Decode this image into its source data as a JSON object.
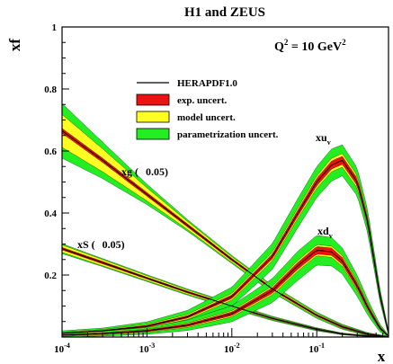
{
  "chart_data": {
    "type": "line",
    "title": "H1 and ZEUS",
    "xlabel": "x",
    "ylabel": "xf",
    "xscale": "log",
    "xlim": [
      0.0001,
      0.7
    ],
    "ylim": [
      0,
      1
    ],
    "grid": false,
    "legend_position": "top-center",
    "x_ticks": [
      {
        "value": 0.0001,
        "base": "10",
        "exp": "-4"
      },
      {
        "value": 0.001,
        "base": "10",
        "exp": "-3"
      },
      {
        "value": 0.01,
        "base": "10",
        "exp": "-2"
      },
      {
        "value": 0.1,
        "base": "10",
        "exp": "-1"
      },
      {
        "value": 1,
        "base": "1",
        "exp": ""
      }
    ],
    "y_ticks": [
      {
        "value": 0.2,
        "label": "0.2"
      },
      {
        "value": 0.4,
        "label": "0.4"
      },
      {
        "value": 0.6,
        "label": "0.6"
      },
      {
        "value": 0.8,
        "label": "0.8"
      },
      {
        "value": 1.0,
        "label": "1"
      }
    ],
    "q2_label": {
      "base": "Q",
      "sup": "2",
      "rest": " = 10 GeV",
      "sup2": "2"
    },
    "legend": [
      {
        "label": "HERAPDF1.0",
        "kind": "line",
        "color": "#000000"
      },
      {
        "label": "exp. uncert.",
        "kind": "band",
        "color": "#ee1111"
      },
      {
        "label": "model uncert.",
        "kind": "band",
        "color": "#ffff22"
      },
      {
        "label": "parametrization uncert.",
        "kind": "band",
        "color": "#22ee22"
      }
    ],
    "colors": {
      "exp": "#ee1111",
      "model": "#ffff22",
      "param": "#22ee22",
      "central": "#000000"
    },
    "series": [
      {
        "name": "xg ( 0.05)",
        "label": {
          "text": "xg (",
          "scale": "0.05)"
        },
        "points": [
          {
            "x": 0.0001,
            "y": 0.665,
            "exp": 0.008,
            "model": 0.045,
            "param": 0.035
          },
          {
            "x": 0.0003,
            "y": 0.57,
            "exp": 0.007,
            "model": 0.03,
            "param": 0.022
          },
          {
            "x": 0.001,
            "y": 0.46,
            "exp": 0.006,
            "model": 0.015,
            "param": 0.012
          },
          {
            "x": 0.003,
            "y": 0.36,
            "exp": 0.005,
            "model": 0.008,
            "param": 0.006
          },
          {
            "x": 0.01,
            "y": 0.25,
            "exp": 0.004,
            "model": 0.005,
            "param": 0.004
          },
          {
            "x": 0.03,
            "y": 0.155,
            "exp": 0.004,
            "model": 0.004,
            "param": 0.004
          },
          {
            "x": 0.1,
            "y": 0.07,
            "exp": 0.003,
            "model": 0.003,
            "param": 0.004
          },
          {
            "x": 0.2,
            "y": 0.033,
            "exp": 0.003,
            "model": 0.002,
            "param": 0.003
          },
          {
            "x": 0.4,
            "y": 0.009,
            "exp": 0.002,
            "model": 0.001,
            "param": 0.002
          },
          {
            "x": 0.7,
            "y": 0.0005,
            "exp": 0.001,
            "model": 0.0,
            "param": 0.001
          }
        ]
      },
      {
        "name": "xS ( 0.05)",
        "label": {
          "text": "xS (",
          "scale": "0.05)"
        },
        "points": [
          {
            "x": 0.0001,
            "y": 0.285,
            "exp": 0.004,
            "model": 0.008,
            "param": 0.004
          },
          {
            "x": 0.0003,
            "y": 0.24,
            "exp": 0.004,
            "model": 0.006,
            "param": 0.003
          },
          {
            "x": 0.001,
            "y": 0.19,
            "exp": 0.003,
            "model": 0.005,
            "param": 0.003
          },
          {
            "x": 0.003,
            "y": 0.145,
            "exp": 0.003,
            "model": 0.004,
            "param": 0.003
          },
          {
            "x": 0.01,
            "y": 0.1,
            "exp": 0.003,
            "model": 0.003,
            "param": 0.003
          },
          {
            "x": 0.03,
            "y": 0.06,
            "exp": 0.002,
            "model": 0.002,
            "param": 0.003
          },
          {
            "x": 0.1,
            "y": 0.025,
            "exp": 0.002,
            "model": 0.001,
            "param": 0.002
          },
          {
            "x": 0.2,
            "y": 0.01,
            "exp": 0.001,
            "model": 0.001,
            "param": 0.001
          },
          {
            "x": 0.4,
            "y": 0.003,
            "exp": 0.001,
            "model": 0.0,
            "param": 0.001
          },
          {
            "x": 0.7,
            "y": 0.0003,
            "exp": 0.0,
            "model": 0.0,
            "param": 0.0
          }
        ]
      },
      {
        "name": "xu_v",
        "label": {
          "text": "xu",
          "sub": "v"
        },
        "points": [
          {
            "x": 0.0001,
            "y": 0.012,
            "exp": 0.002,
            "model": 0.002,
            "param": 0.004
          },
          {
            "x": 0.0003,
            "y": 0.02,
            "exp": 0.002,
            "model": 0.002,
            "param": 0.005
          },
          {
            "x": 0.001,
            "y": 0.035,
            "exp": 0.003,
            "model": 0.003,
            "param": 0.008
          },
          {
            "x": 0.003,
            "y": 0.065,
            "exp": 0.004,
            "model": 0.004,
            "param": 0.013
          },
          {
            "x": 0.01,
            "y": 0.13,
            "exp": 0.006,
            "model": 0.005,
            "param": 0.02
          },
          {
            "x": 0.03,
            "y": 0.26,
            "exp": 0.008,
            "model": 0.006,
            "param": 0.028
          },
          {
            "x": 0.06,
            "y": 0.4,
            "exp": 0.01,
            "model": 0.007,
            "param": 0.03
          },
          {
            "x": 0.1,
            "y": 0.5,
            "exp": 0.012,
            "model": 0.008,
            "param": 0.03
          },
          {
            "x": 0.15,
            "y": 0.555,
            "exp": 0.013,
            "model": 0.009,
            "param": 0.03
          },
          {
            "x": 0.2,
            "y": 0.57,
            "exp": 0.013,
            "model": 0.009,
            "param": 0.028
          },
          {
            "x": 0.3,
            "y": 0.5,
            "exp": 0.012,
            "model": 0.008,
            "param": 0.025
          },
          {
            "x": 0.4,
            "y": 0.37,
            "exp": 0.01,
            "model": 0.007,
            "param": 0.02
          },
          {
            "x": 0.55,
            "y": 0.14,
            "exp": 0.006,
            "model": 0.004,
            "param": 0.012
          },
          {
            "x": 0.7,
            "y": 0.012,
            "exp": 0.002,
            "model": 0.001,
            "param": 0.004
          }
        ]
      },
      {
        "name": "xd_v",
        "label": {
          "text": "xd",
          "sub": "v"
        },
        "points": [
          {
            "x": 0.0001,
            "y": 0.006,
            "exp": 0.002,
            "model": 0.002,
            "param": 0.003
          },
          {
            "x": 0.0003,
            "y": 0.011,
            "exp": 0.002,
            "model": 0.002,
            "param": 0.004
          },
          {
            "x": 0.001,
            "y": 0.02,
            "exp": 0.003,
            "model": 0.002,
            "param": 0.006
          },
          {
            "x": 0.003,
            "y": 0.038,
            "exp": 0.004,
            "model": 0.003,
            "param": 0.01
          },
          {
            "x": 0.01,
            "y": 0.075,
            "exp": 0.006,
            "model": 0.004,
            "param": 0.016
          },
          {
            "x": 0.03,
            "y": 0.15,
            "exp": 0.009,
            "model": 0.005,
            "param": 0.025
          },
          {
            "x": 0.06,
            "y": 0.23,
            "exp": 0.011,
            "model": 0.006,
            "param": 0.03
          },
          {
            "x": 0.1,
            "y": 0.28,
            "exp": 0.012,
            "model": 0.006,
            "param": 0.03
          },
          {
            "x": 0.15,
            "y": 0.275,
            "exp": 0.012,
            "model": 0.006,
            "param": 0.028
          },
          {
            "x": 0.2,
            "y": 0.245,
            "exp": 0.011,
            "model": 0.006,
            "param": 0.025
          },
          {
            "x": 0.3,
            "y": 0.165,
            "exp": 0.009,
            "model": 0.005,
            "param": 0.02
          },
          {
            "x": 0.4,
            "y": 0.095,
            "exp": 0.007,
            "model": 0.004,
            "param": 0.014
          },
          {
            "x": 0.55,
            "y": 0.03,
            "exp": 0.004,
            "model": 0.002,
            "param": 0.007
          },
          {
            "x": 0.7,
            "y": 0.003,
            "exp": 0.001,
            "model": 0.0,
            "param": 0.002
          }
        ]
      }
    ]
  }
}
